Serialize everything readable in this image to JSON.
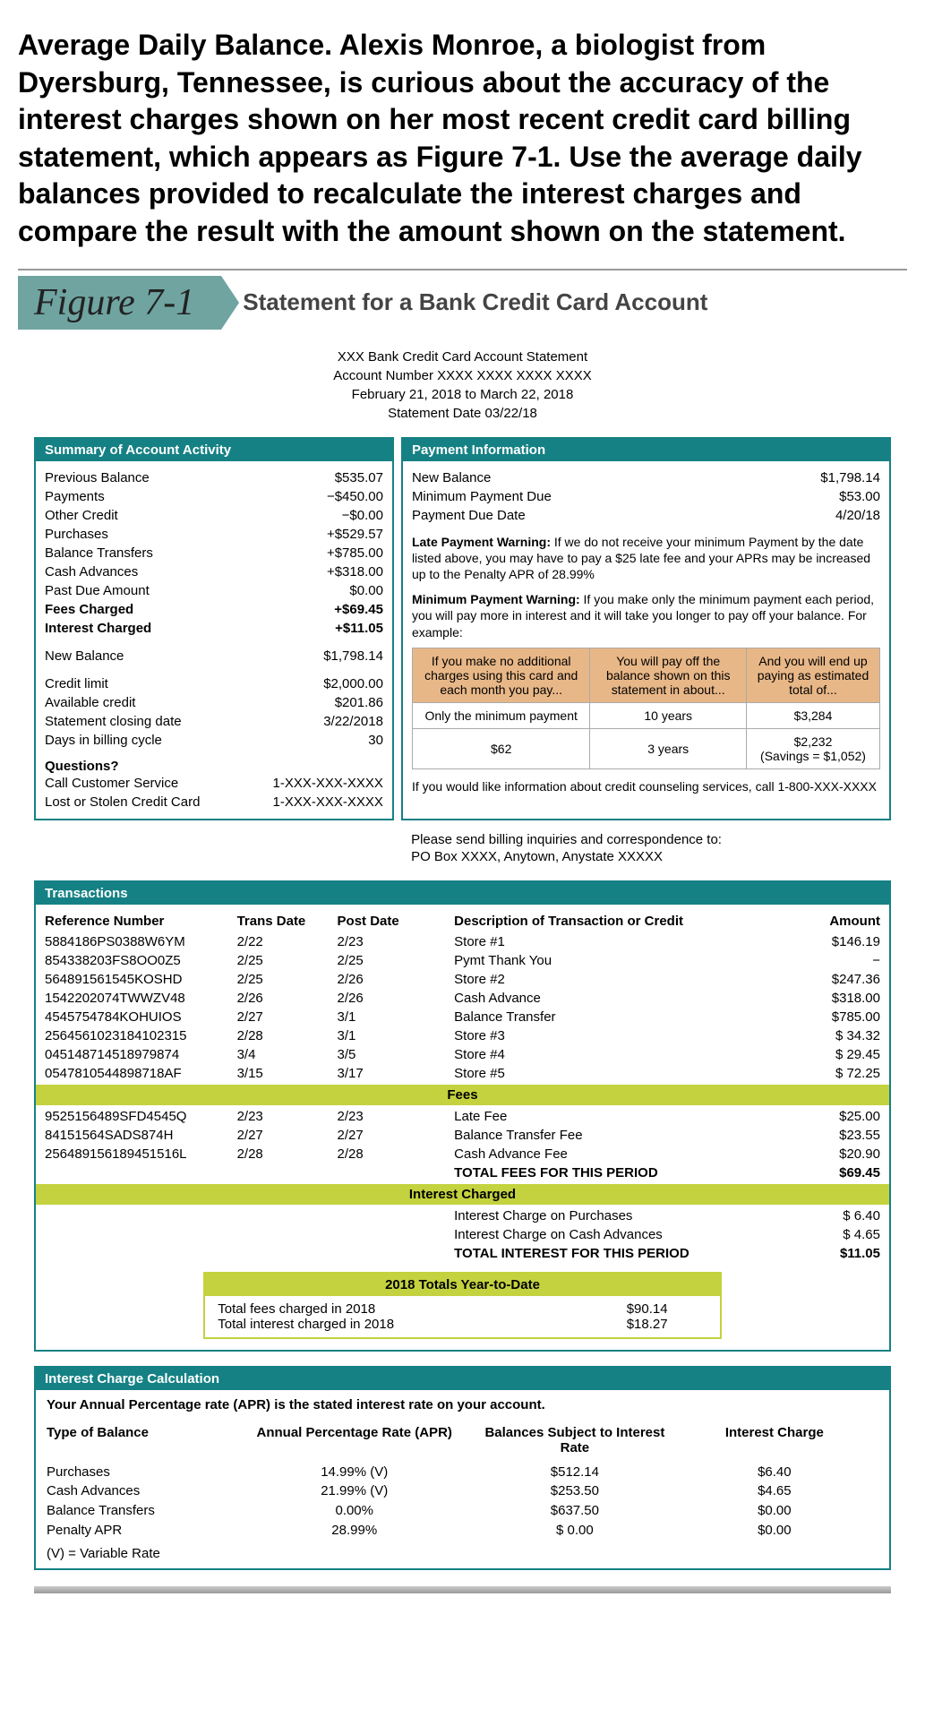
{
  "problem_text": "Average Daily Balance. Alexis Monroe, a biologist from Dyersburg, Tennessee, is curious about the accuracy of the interest charges shown on her most recent credit card billing statement, which appears as Figure 7-1. Use the average daily balances provided to recalculate the interest charges and compare the result with the amount shown on the statement.",
  "figure_label": "Figure 7-1",
  "figure_title": "Statement for a Bank Credit Card Account",
  "statement_header": {
    "line1": "XXX Bank Credit Card Account Statement",
    "line2": "Account Number XXXX XXXX XXXX XXXX",
    "line3": "February 21, 2018 to March 22, 2018",
    "line4": "Statement Date 03/22/18"
  },
  "summary": {
    "title": "Summary of Account Activity",
    "rows": [
      {
        "label": "Previous Balance",
        "val": "$535.07"
      },
      {
        "label": "Payments",
        "val": "−$450.00"
      },
      {
        "label": "Other Credit",
        "val": "−$0.00"
      },
      {
        "label": "Purchases",
        "val": "+$529.57"
      },
      {
        "label": "Balance Transfers",
        "val": "+$785.00"
      },
      {
        "label": "Cash Advances",
        "val": "+$318.00"
      },
      {
        "label": "Past Due Amount",
        "val": "$0.00"
      },
      {
        "label": "Fees Charged",
        "val": "+$69.45",
        "bold": true
      },
      {
        "label": "Interest Charged",
        "val": "+$11.05",
        "bold": true
      }
    ],
    "new_balance": {
      "label": "New Balance",
      "val": "$1,798.14"
    },
    "credit": [
      {
        "label": "Credit limit",
        "val": "$2,000.00"
      },
      {
        "label": "Available credit",
        "val": "$201.86"
      },
      {
        "label": "Statement closing date",
        "val": "3/22/2018"
      },
      {
        "label": "Days in billing cycle",
        "val": "30"
      }
    ],
    "questions_label": "Questions?",
    "customer_service": {
      "label": "Call Customer Service",
      "val": "1-XXX-XXX-XXXX"
    },
    "lost_card": {
      "label": "Lost or Stolen Credit Card",
      "val": "1-XXX-XXX-XXXX"
    }
  },
  "payment": {
    "title": "Payment Information",
    "rows": [
      {
        "label": "New Balance",
        "val": "$1,798.14"
      },
      {
        "label": "Minimum Payment Due",
        "val": "$53.00"
      },
      {
        "label": "Payment Due Date",
        "val": "4/20/18"
      }
    ],
    "late_warning_label": "Late Payment Warning:",
    "late_warning": " If we do not receive your minimum Payment by the date listed above, you may have to pay a $25 late fee and your APRs may be increased up to the Penalty APR of 28.99%",
    "min_warning_label": "Minimum Payment Warning:",
    "min_warning": " If you make only the minimum payment each period, you will pay more in interest and it will take you longer to pay off your balance. For example:",
    "table": {
      "headers": [
        "If you make no additional charges using this card and each month you pay...",
        "You will pay off the balance shown on this statement in about...",
        "And you will end up paying as estimated total of..."
      ],
      "rows": [
        [
          "Only the minimum payment",
          "10 years",
          "$3,284"
        ],
        [
          "$62",
          "3 years",
          "$2,232\n(Savings = $1,052)"
        ]
      ]
    },
    "counseling": "If you would like information about credit counseling services, call 1-800-XXX-XXXX"
  },
  "billing_note": "Please send billing inquiries and correspondence to:\nPO Box XXXX, Anytown, Anystate XXXXX",
  "transactions": {
    "title": "Transactions",
    "headers": [
      "Reference Number",
      "Trans Date",
      "Post Date",
      "Description of Transaction or Credit",
      "Amount"
    ],
    "rows": [
      [
        "5884186PS0388W6YM",
        "2/22",
        "2/23",
        "Store #1",
        "$146.19"
      ],
      [
        "854338203FS8OO0Z5",
        "2/25",
        "2/25",
        "Pymt Thank You",
        "−"
      ],
      [
        "564891561545KOSHD",
        "2/25",
        "2/26",
        "Store #2",
        "$247.36"
      ],
      [
        "1542202074TWWZV48",
        "2/26",
        "2/26",
        "Cash Advance",
        "$318.00"
      ],
      [
        "4545754784KOHUIOS",
        "2/27",
        "3/1",
        "Balance Transfer",
        "$785.00"
      ],
      [
        "2564561023184102315",
        "2/28",
        "3/1",
        "Store #3",
        "$ 34.32"
      ],
      [
        "045148714518979874",
        "3/4",
        "3/5",
        "Store #4",
        "$ 29.45"
      ],
      [
        "0547810544898718AF",
        "3/15",
        "3/17",
        "Store #5",
        "$ 72.25"
      ]
    ],
    "fees_label": "Fees",
    "fees": [
      [
        "9525156489SFD4545Q",
        "2/23",
        "2/23",
        "Late Fee",
        "$25.00"
      ],
      [
        "84151564SADS874H",
        "2/27",
        "2/27",
        "Balance Transfer Fee",
        "$23.55"
      ],
      [
        "256489156189451516L",
        "2/28",
        "2/28",
        "Cash Advance Fee",
        "$20.90"
      ]
    ],
    "fees_total": {
      "label": "TOTAL FEES FOR THIS PERIOD",
      "val": "$69.45"
    },
    "interest_label": "Interest Charged",
    "interest": [
      [
        "Interest Charge on Purchases",
        "$ 6.40"
      ],
      [
        "Interest Charge on Cash Advances",
        "$ 4.65"
      ]
    ],
    "interest_total": {
      "label": "TOTAL INTEREST FOR THIS PERIOD",
      "val": "$11.05"
    },
    "ytd": {
      "title": "2018 Totals Year-to-Date",
      "rows": [
        {
          "label": "Total fees charged in 2018",
          "val": "$90.14"
        },
        {
          "label": "Total interest charged in 2018",
          "val": "$18.27"
        }
      ]
    }
  },
  "apr_calc": {
    "title": "Interest Charge Calculation",
    "note": "Your Annual Percentage rate (APR) is the stated interest rate on your account.",
    "headers": [
      "Type of Balance",
      "Annual Percentage Rate (APR)",
      "Balances Subject to Interest Rate",
      "Interest Charge"
    ],
    "rows": [
      [
        "Purchases",
        "14.99% (V)",
        "$512.14",
        "$6.40"
      ],
      [
        "Cash Advances",
        "21.99% (V)",
        "$253.50",
        "$4.65"
      ],
      [
        "Balance Transfers",
        "0.00%",
        "$637.50",
        "$0.00"
      ],
      [
        "Penalty APR",
        "28.99%",
        "$   0.00",
        "$0.00"
      ]
    ],
    "footnote": "(V) = Variable Rate"
  },
  "colors": {
    "teal": "#158184",
    "badge": "#6fa4a1",
    "peach": "#e8b787",
    "lime": "#c3d23e"
  }
}
